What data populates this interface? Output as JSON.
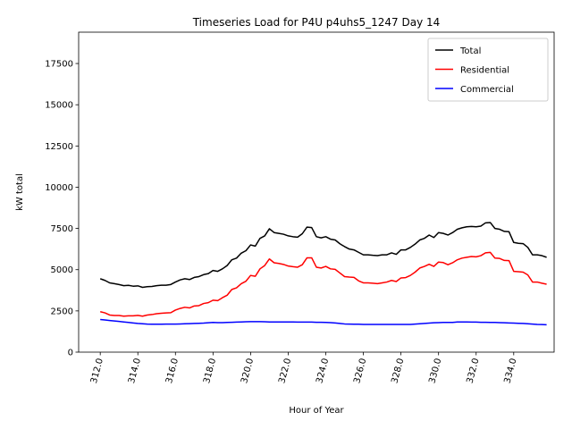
{
  "chart_data": {
    "type": "line",
    "title": "Timeseries Load for P4U p4uhs5_1247  Day 14",
    "xlabel": "Hour of Year",
    "ylabel": "kW total",
    "xlim": [
      310.85,
      336.15
    ],
    "ylim": [
      0,
      19400
    ],
    "xticks": [
      312,
      314,
      316,
      318,
      320,
      322,
      324,
      326,
      328,
      330,
      332,
      334
    ],
    "xtick_labels": [
      "312.0",
      "314.0",
      "316.0",
      "318.0",
      "320.0",
      "322.0",
      "324.0",
      "326.0",
      "328.0",
      "330.0",
      "332.0",
      "334.0"
    ],
    "yticks": [
      0,
      2500,
      5000,
      7500,
      10000,
      12500,
      15000,
      17500
    ],
    "ytick_labels": [
      "0",
      "2500",
      "5000",
      "7500",
      "10000",
      "12500",
      "15000",
      "17500"
    ],
    "legend_position": "top-right",
    "x": [
      312,
      312.25,
      312.5,
      312.75,
      313,
      313.25,
      313.5,
      313.75,
      314,
      314.25,
      314.5,
      314.75,
      315,
      315.25,
      315.5,
      315.75,
      316,
      316.25,
      316.5,
      316.75,
      317,
      317.25,
      317.5,
      317.75,
      318,
      318.25,
      318.5,
      318.75,
      319,
      319.25,
      319.5,
      319.75,
      320,
      320.25,
      320.5,
      320.75,
      321,
      321.25,
      321.5,
      321.75,
      322,
      322.25,
      322.5,
      322.75,
      323,
      323.25,
      323.5,
      323.75,
      324,
      324.25,
      324.5,
      324.75,
      325,
      325.25,
      325.5,
      325.75,
      326,
      326.25,
      326.5,
      326.75,
      327,
      327.25,
      327.5,
      327.75,
      328,
      328.25,
      328.5,
      328.75,
      329,
      329.25,
      329.5,
      329.75,
      330,
      330.25,
      330.5,
      330.75,
      331,
      331.25,
      331.5,
      331.75,
      332,
      332.25,
      332.5,
      332.75,
      333,
      333.25,
      333.5,
      333.75,
      334,
      334.25,
      334.5,
      334.75,
      335,
      335.25,
      335.5,
      335.75
    ],
    "series": [
      {
        "name": "Total",
        "color": "#000000",
        "values": [
          4450,
          4350,
          4200,
          4150,
          4100,
          4030,
          4050,
          4000,
          4020,
          3930,
          3970,
          3980,
          4030,
          4060,
          4060,
          4100,
          4250,
          4380,
          4450,
          4400,
          4530,
          4580,
          4700,
          4760,
          4950,
          4900,
          5050,
          5250,
          5600,
          5700,
          6000,
          6150,
          6500,
          6430,
          6900,
          7050,
          7480,
          7250,
          7200,
          7150,
          7050,
          7000,
          6970,
          7180,
          7580,
          7550,
          7000,
          6930,
          7000,
          6850,
          6800,
          6570,
          6400,
          6250,
          6200,
          6050,
          5900,
          5900,
          5870,
          5850,
          5900,
          5900,
          6020,
          5930,
          6200,
          6200,
          6350,
          6550,
          6800,
          6900,
          7100,
          6950,
          7250,
          7200,
          7100,
          7250,
          7450,
          7540,
          7600,
          7620,
          7600,
          7640,
          7840,
          7860,
          7500,
          7450,
          7320,
          7300,
          6650,
          6600,
          6580,
          6350,
          5900,
          5900,
          5850,
          5750
        ]
      },
      {
        "name": "Residential",
        "color": "#ff0000",
        "values": [
          2450,
          2380,
          2250,
          2220,
          2220,
          2180,
          2200,
          2200,
          2230,
          2180,
          2250,
          2280,
          2330,
          2360,
          2380,
          2390,
          2550,
          2650,
          2720,
          2680,
          2800,
          2820,
          2950,
          3000,
          3150,
          3120,
          3300,
          3450,
          3800,
          3900,
          4150,
          4300,
          4650,
          4600,
          5050,
          5250,
          5650,
          5420,
          5380,
          5320,
          5220,
          5180,
          5150,
          5300,
          5720,
          5720,
          5150,
          5100,
          5200,
          5050,
          5020,
          4800,
          4580,
          4550,
          4530,
          4320,
          4200,
          4200,
          4180,
          4150,
          4200,
          4250,
          4350,
          4280,
          4500,
          4520,
          4650,
          4850,
          5100,
          5200,
          5330,
          5200,
          5460,
          5430,
          5300,
          5420,
          5600,
          5700,
          5750,
          5800,
          5780,
          5850,
          6020,
          6050,
          5700,
          5680,
          5560,
          5550,
          4900,
          4880,
          4850,
          4680,
          4250,
          4250,
          4180,
          4120
        ]
      },
      {
        "name": "Commercial",
        "color": "#0000ff",
        "values": [
          1980,
          1950,
          1920,
          1890,
          1860,
          1830,
          1800,
          1770,
          1740,
          1720,
          1700,
          1690,
          1690,
          1690,
          1700,
          1700,
          1700,
          1710,
          1720,
          1730,
          1740,
          1750,
          1760,
          1780,
          1800,
          1790,
          1790,
          1800,
          1810,
          1820,
          1830,
          1840,
          1850,
          1850,
          1850,
          1840,
          1830,
          1830,
          1830,
          1830,
          1830,
          1830,
          1820,
          1820,
          1820,
          1820,
          1810,
          1810,
          1800,
          1790,
          1770,
          1740,
          1710,
          1700,
          1690,
          1690,
          1680,
          1680,
          1680,
          1680,
          1680,
          1680,
          1680,
          1680,
          1680,
          1680,
          1680,
          1700,
          1720,
          1740,
          1760,
          1780,
          1790,
          1800,
          1800,
          1800,
          1830,
          1830,
          1830,
          1820,
          1820,
          1810,
          1810,
          1800,
          1800,
          1790,
          1780,
          1770,
          1760,
          1750,
          1740,
          1720,
          1700,
          1680,
          1670,
          1660
        ]
      }
    ]
  }
}
